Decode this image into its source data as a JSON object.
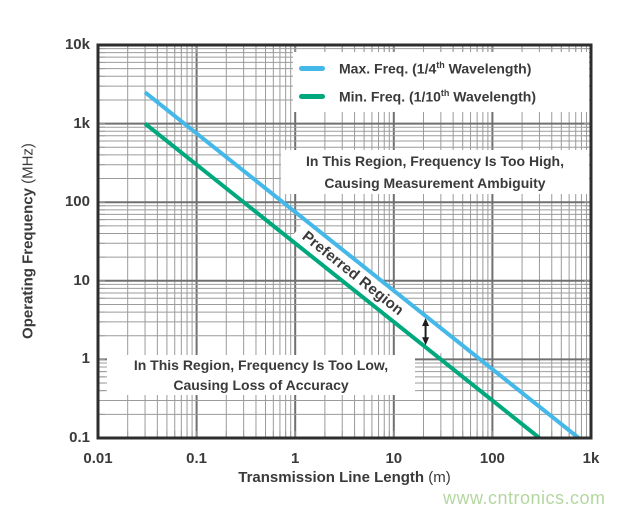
{
  "chart_data": {
    "type": "line",
    "title": "",
    "x_axis": {
      "label_main": "Transmission Line Length",
      "label_unit": " (m)",
      "scale": "log",
      "min": 0.01,
      "max": 1000,
      "ticks": [
        {
          "v": 0.01,
          "label": "0.01"
        },
        {
          "v": 0.1,
          "label": "0.1"
        },
        {
          "v": 1,
          "label": "1"
        },
        {
          "v": 10,
          "label": "10"
        },
        {
          "v": 100,
          "label": "100"
        },
        {
          "v": 1000,
          "label": "1k"
        }
      ]
    },
    "y_axis": {
      "label_main": "Operating Frequency",
      "label_unit": " (MHz)",
      "scale": "log",
      "min": 0.1,
      "max": 10000,
      "ticks": [
        {
          "v": 10000,
          "label": "10k"
        },
        {
          "v": 1000,
          "label": "1k"
        },
        {
          "v": 100,
          "label": "100"
        },
        {
          "v": 10,
          "label": "10"
        },
        {
          "v": 1,
          "label": "1"
        },
        {
          "v": 0.1,
          "label": "0.1"
        }
      ]
    },
    "series": [
      {
        "id": "max-freq",
        "legend_pre": "Max. Freq. (1/4",
        "legend_sup": "th",
        "legend_post": " Wavelength)",
        "color": "#44b8e8",
        "relation": "f_MHz = 75 / L_m",
        "points": [
          [
            0.03,
            2500
          ],
          [
            750,
            0.1
          ]
        ]
      },
      {
        "id": "min-freq",
        "legend_pre": "Min. Freq. (1/10",
        "legend_sup": "th",
        "legend_post": " Wavelength)",
        "color": "#00a87d",
        "relation": "f_MHz = 30 / L_m",
        "points": [
          [
            0.03,
            1000
          ],
          [
            300,
            0.1
          ]
        ]
      }
    ],
    "annotations": {
      "too_high": {
        "line1": "In This Region, Frequency Is Too High,",
        "line2": "Causing Measurement Ambiguity"
      },
      "too_low": {
        "line1": "In This Region, Frequency Is Too Low,",
        "line2": "Causing Loss of Accuracy"
      },
      "preferred": {
        "text": "Preferred Region"
      }
    },
    "arrow": {
      "x_m": 21,
      "between": [
        "max-freq",
        "min-freq"
      ],
      "color": "#1f1f1f"
    },
    "grid": {
      "minor_color": "#9b9b9b",
      "major_color": "#707070"
    },
    "frame_color": "#2d2d2d",
    "legend_position": "top-right-inside"
  },
  "watermark": {
    "text": "www.cntronics.com",
    "color": "#b4d7a0"
  }
}
